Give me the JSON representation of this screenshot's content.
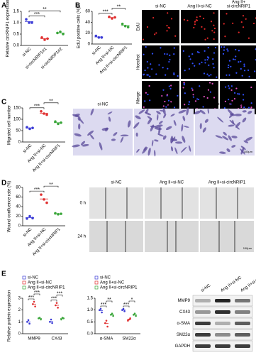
{
  "panel_labels": [
    "A",
    "B",
    "C",
    "D",
    "E"
  ],
  "chart_data": [
    {
      "type": "dot",
      "ylabel": "Relative circRNIP1 expression",
      "categories": [
        "si-NC",
        "si-circNRIP1#1",
        "si-circNRIP1#2"
      ],
      "colors": [
        "#3b3bd6",
        "#e03030",
        "#3aa63a"
      ],
      "values": [
        1.05,
        0.3,
        0.55
      ],
      "points": [
        [
          1.15,
          1.0,
          1.0
        ],
        [
          0.35,
          0.25,
          0.3
        ],
        [
          0.55,
          0.6,
          0.5
        ]
      ],
      "ylim": [
        0,
        1.5
      ],
      "yticks": [
        {
          "value": 0,
          "label": "0.0"
        },
        0.5,
        {
          "value": 1,
          "label": "1.0"
        },
        1.5
      ],
      "brackets": [
        {
          "text": "***",
          "between": [
            "si-NC",
            "si-circNRIP1#1"
          ]
        },
        {
          "text": "**",
          "between": [
            "si-NC",
            "si-circNRIP1#2"
          ]
        }
      ]
    },
    {
      "type": "dot",
      "ylabel": "EdU positive cells (%)",
      "categories": [
        "si-NC",
        "Ang II+si-NC",
        "Ang II+si-circNRIP1"
      ],
      "colors": [
        "#3b3bd6",
        "#e03030",
        "#3aa63a"
      ],
      "values": [
        13,
        48.5,
        34
      ],
      "points": [
        [
          15,
          12,
          12
        ],
        [
          50,
          47,
          49
        ],
        [
          37,
          33,
          31
        ]
      ],
      "ylim": [
        0,
        60
      ],
      "yticks": [
        0,
        20,
        40,
        60
      ],
      "brackets": [
        {
          "text": "***",
          "between": [
            "si-NC",
            "Ang II+si-NC"
          ]
        },
        {
          "text": "**",
          "between": [
            "Ang II+si-NC",
            "Ang II+si-circNRIP1"
          ]
        }
      ]
    },
    {
      "type": "dot",
      "ylabel": "Migrated cell number",
      "categories": [
        "si-NC",
        "Ang II+si-NC",
        "Ang II+si-circNRIP1"
      ],
      "colors": [
        "#3b3bd6",
        "#e03030",
        "#3aa63a"
      ],
      "values": [
        62,
        127,
        85
      ],
      "points": [
        [
          65,
          58,
          62
        ],
        [
          135,
          125,
          120
        ],
        [
          90,
          80,
          85
        ]
      ],
      "ylim": [
        0,
        150
      ],
      "yticks": [
        0,
        50,
        100,
        150
      ],
      "brackets": [
        {
          "text": "***",
          "between": [
            "si-NC",
            "Ang II+si-NC"
          ]
        },
        {
          "text": "**",
          "between": [
            "Ang II+si-NC",
            "Ang II+si-circNRIP1"
          ]
        }
      ]
    },
    {
      "type": "dot",
      "ylabel": "Wound confluence rate (%)",
      "categories": [
        "si-NC",
        "Ang II+si-NC",
        "Ang II+si-circNRIP1"
      ],
      "colors": [
        "#3b3bd6",
        "#e03030",
        "#3aa63a"
      ],
      "values": [
        17,
        56,
        25
      ],
      "points": [
        [
          15,
          20,
          16
        ],
        [
          65,
          55,
          48
        ],
        [
          26,
          24,
          25
        ]
      ],
      "ylim": [
        0,
        80
      ],
      "yticks": [
        0,
        20,
        40,
        60,
        80
      ],
      "brackets": [
        {
          "text": "***",
          "between": [
            "si-NC",
            "Ang II+si-NC"
          ]
        },
        {
          "text": "**",
          "between": [
            "Ang II+si-NC",
            "Ang II+si-circNRIP1"
          ]
        }
      ]
    },
    {
      "type": "grouped-dot",
      "ylabel": "Relative protein expression",
      "categories": [
        "MMP9",
        "CX43"
      ],
      "series": [
        {
          "name": "si-NC",
          "color": "#3b3bd6",
          "values": [
            1.0,
            1.03
          ],
          "points": [
            [
              1.0,
              1.15,
              0.85
            ],
            [
              1.0,
              1.2,
              0.9
            ]
          ]
        },
        {
          "name": "Ang II+si-NC",
          "color": "#e03030",
          "values": [
            2.5,
            2.4
          ],
          "points": [
            [
              2.5,
              2.7,
              2.3
            ],
            [
              2.4,
              2.6,
              2.2
            ]
          ]
        },
        {
          "name": "Ang II+si-circNRIP1",
          "color": "#3aa63a",
          "values": [
            1.28,
            1.28
          ],
          "points": [
            [
              1.3,
              1.35,
              1.2
            ],
            [
              1.2,
              1.35,
              1.3
            ]
          ]
        }
      ],
      "ylim": [
        0,
        3
      ],
      "yticks": [
        0,
        1,
        2,
        3
      ],
      "brackets": [
        {
          "text": "***",
          "category": "MMP9",
          "between": [
            "si-NC",
            "Ang II+si-NC"
          ]
        },
        {
          "text": "***",
          "category": "MMP9",
          "between": [
            "Ang II+si-NC",
            "Ang II+si-circNRIP1"
          ]
        },
        {
          "text": "***",
          "category": "CX43",
          "between": [
            "si-NC",
            "Ang II+si-NC"
          ]
        },
        {
          "text": "***",
          "category": "CX43",
          "between": [
            "Ang II+si-NC",
            "Ang II+si-circNRIP1"
          ]
        }
      ]
    },
    {
      "type": "grouped-dot",
      "categories": [
        "α-SMA",
        "SM22α"
      ],
      "series": [
        {
          "name": "si-NC",
          "color": "#3b3bd6",
          "values": [
            0.98,
            1.0
          ],
          "points": [
            [
              1.0,
              1.05,
              0.9
            ],
            [
              1.0,
              1.05,
              0.95
            ]
          ]
        },
        {
          "name": "Ang II+si-NC",
          "color": "#e03030",
          "values": [
            0.43,
            0.6
          ],
          "points": [
            [
              0.45,
              0.55,
              0.3
            ],
            [
              0.55,
              0.6,
              0.65
            ]
          ]
        },
        {
          "name": "Ang II+si-circNRIP1",
          "color": "#3aa63a",
          "values": [
            0.8,
            0.8
          ],
          "points": [
            [
              0.8,
              0.85,
              0.75
            ],
            [
              0.8,
              0.85,
              0.75
            ]
          ]
        }
      ],
      "ylim": [
        0,
        1.5
      ],
      "yticks": [
        {
          "value": 0,
          "label": "0.0"
        },
        0.5,
        {
          "value": 1,
          "label": "1.0"
        },
        1.5
      ],
      "brackets": [
        {
          "text": "***",
          "category": "α-SMA",
          "between": [
            "si-NC",
            "Ang II+si-NC"
          ]
        },
        {
          "text": "**",
          "category": "α-SMA",
          "between": [
            "Ang II+si-NC",
            "Ang II+si-circNRIP1"
          ]
        },
        {
          "text": "***",
          "category": "SM22α",
          "between": [
            "si-NC",
            "Ang II+si-NC"
          ]
        },
        {
          "text": "*",
          "category": "SM22α",
          "between": [
            "Ang II+si-NC",
            "Ang II+si-circNRIP1"
          ]
        }
      ]
    }
  ],
  "images_b": {
    "columns": [
      "si-NC",
      "Ang II+si-NC",
      [
        "Ang II+",
        "si-circNRIP1"
      ]
    ],
    "rows": [
      "EdU",
      "Hoechst",
      "Merge"
    ],
    "scale": "20μm"
  },
  "images_c": {
    "columns": [
      "si-NC",
      "Ang II+si-NC",
      "Ang II+si-circNRIP1"
    ],
    "scale": "100μm"
  },
  "images_d": {
    "columns": [
      "si-NC",
      "Ang II+si-NC",
      "Ang II+si-circNRIP1"
    ],
    "rows": [
      "0 h",
      "24 h"
    ],
    "scale": "100μm"
  },
  "western": {
    "columns": [
      "si-NC",
      "Ang II+si-NC",
      "Ang II+si-circNRIP1"
    ],
    "rows": [
      "MMP9",
      "CX43",
      "α-SMA",
      "SM22α",
      "GAPDH"
    ]
  }
}
